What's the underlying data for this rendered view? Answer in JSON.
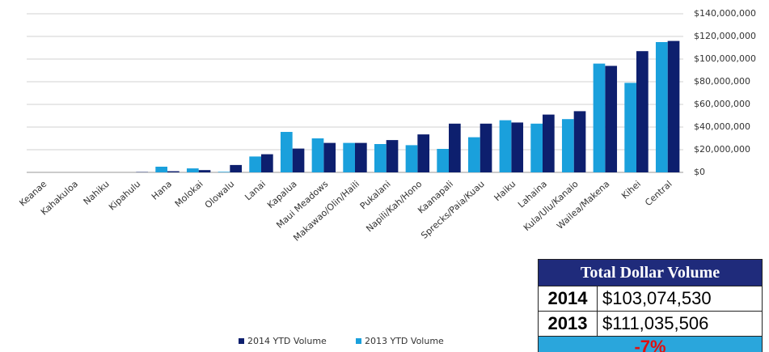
{
  "chart_data": {
    "type": "bar",
    "categories": [
      "Keanae",
      "Kahakuloa",
      "Nahiku",
      "Kipahulu",
      "Hana",
      "Molokai",
      "Olowalu",
      "Lanai",
      "Kapalua",
      "Maui Meadows",
      "Makawao/Olin/Haili",
      "Pukalani",
      "Napili/Kah/Hono",
      "Kaanapali",
      "Sprecks/Paia/Kuau",
      "Haiku",
      "Lahaina",
      "Kula/Ulu/Kanaio",
      "Wailea/Makena",
      "Kihei",
      "Central"
    ],
    "series": [
      {
        "name": "2014 YTD Volume",
        "color": "#0d1f6e",
        "values": [
          0,
          0,
          0,
          300000,
          1000000,
          2000000,
          6500000,
          16000000,
          21000000,
          26000000,
          26000000,
          28500000,
          33500000,
          43000000,
          43000000,
          44000000,
          51000000,
          54000000,
          94000000,
          107000000,
          116000000
        ]
      },
      {
        "name": "2013 YTD Volume",
        "color": "#1aa0dc",
        "values": [
          0,
          0,
          0,
          0,
          5000000,
          3500000,
          500000,
          14000000,
          35700000,
          30000000,
          26000000,
          25000000,
          24000000,
          20700000,
          31000000,
          46000000,
          43000000,
          47000000,
          96000000,
          79000000,
          115000000
        ]
      }
    ],
    "ylim": [
      0,
      140000000
    ],
    "yticks": [
      {
        "value": 0,
        "label": "$0"
      },
      {
        "value": 20000000,
        "label": "$20,000,000"
      },
      {
        "value": 40000000,
        "label": "$40,000,000"
      },
      {
        "value": 60000000,
        "label": "$60,000,000"
      },
      {
        "value": 80000000,
        "label": "$80,000,000"
      },
      {
        "value": 100000000,
        "label": "$100,000,000"
      },
      {
        "value": 120000000,
        "label": "$120,000,000"
      },
      {
        "value": 140000000,
        "label": "$140,000,000"
      }
    ],
    "grid": true,
    "legend": "bottom"
  },
  "table": {
    "title": "Total Dollar Volume",
    "rows": [
      [
        "2014",
        "$103,074,530"
      ],
      [
        "2013",
        "$111,035,506"
      ]
    ],
    "change": "-7%"
  }
}
